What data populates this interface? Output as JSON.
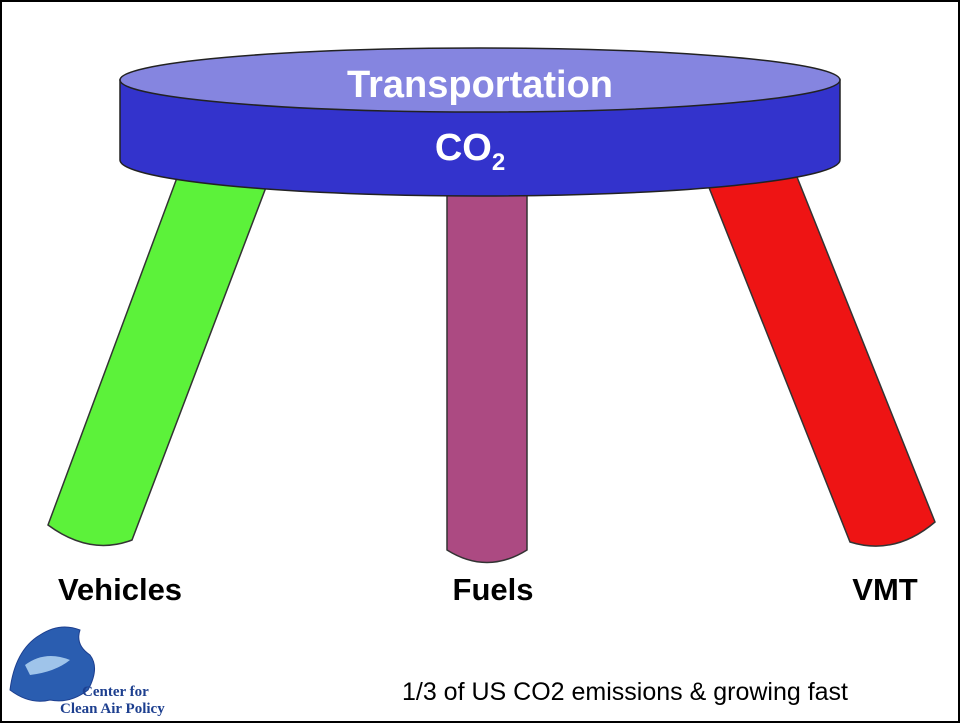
{
  "title": {
    "main": "Transportation",
    "formula": "CO",
    "subscript": "2"
  },
  "legs": [
    {
      "label": "Vehicles"
    },
    {
      "label": "Fuels"
    },
    {
      "label": "VMT"
    }
  ],
  "footer": "1/3 of US CO2 emissions & growing fast",
  "logo": {
    "line1": "Center for",
    "line2": "Clean Air Policy"
  }
}
